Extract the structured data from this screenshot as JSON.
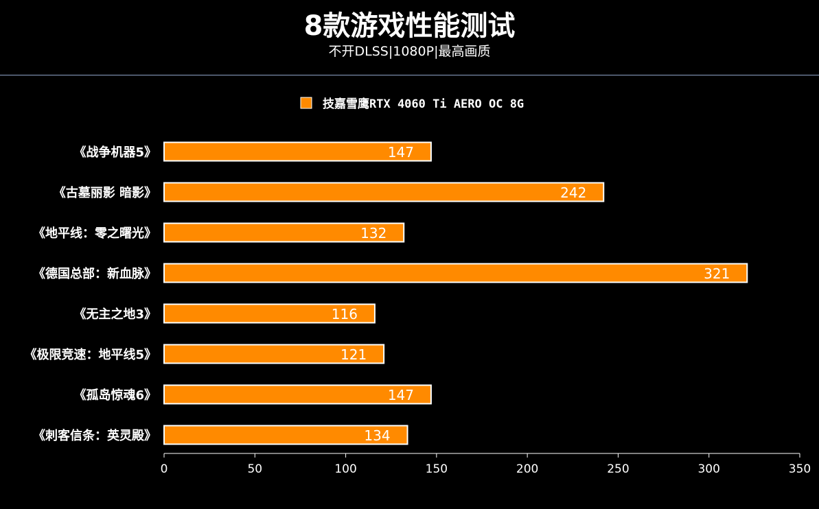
{
  "header": {
    "title": "8款游戏性能测试",
    "subtitle": "不开DLSS|1080P|最高画质"
  },
  "colors": {
    "background": "#000000",
    "bar_fill": "#ff8a00",
    "bar_stroke": "#ffffff",
    "divider": "#8fa3c8",
    "text": "#ffffff"
  },
  "chart_data": {
    "type": "bar",
    "orientation": "horizontal",
    "categories": [
      "《战争机器5》",
      "《古墓丽影 暗影》",
      "《地平线：零之曙光》",
      "《德国总部：新血脉》",
      "《无主之地3》",
      "《极限竞速：地平线5》",
      "《孤岛惊魂6》",
      "《刺客信条：英灵殿》"
    ],
    "series": [
      {
        "name": "技嘉雪鹰RTX 4060 Ti AERO OC 8G",
        "values": [
          147,
          242,
          132,
          321,
          116,
          121,
          147,
          134
        ]
      }
    ],
    "xlim": [
      0,
      350
    ],
    "xticks": [
      0,
      50,
      100,
      150,
      200,
      250,
      300,
      350
    ],
    "grid": false,
    "legend_position": "top-center",
    "data_labels": true
  }
}
